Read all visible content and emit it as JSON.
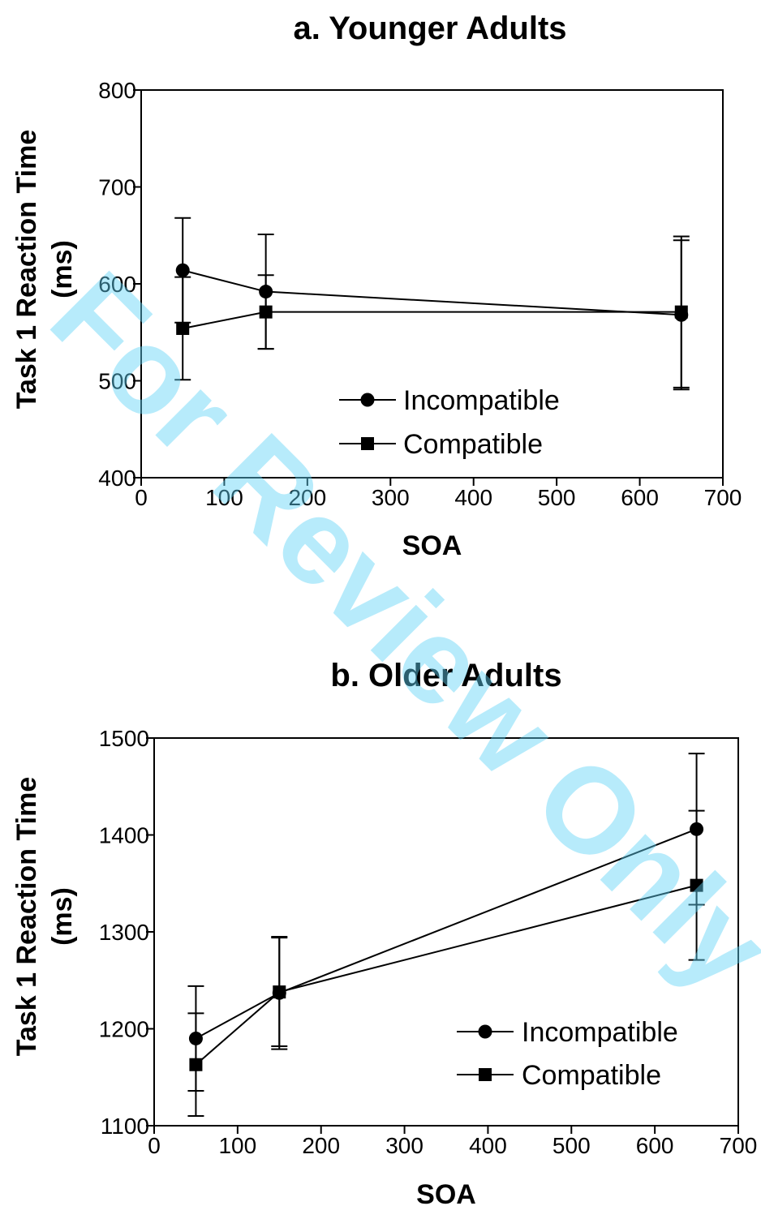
{
  "watermark": "For Review Only",
  "chart_data": [
    {
      "type": "line",
      "title": "a. Younger Adults",
      "xlabel": "SOA",
      "ylabel": [
        "Task 1 Reaction Time",
        "(ms)"
      ],
      "xlim": [
        0,
        700
      ],
      "ylim": [
        400,
        800
      ],
      "x_ticks": [
        0,
        100,
        200,
        300,
        400,
        500,
        600,
        700
      ],
      "y_ticks": [
        400,
        500,
        600,
        700,
        800
      ],
      "grid": false,
      "legend": "bottom-right",
      "x": [
        50,
        150,
        650
      ],
      "series": [
        {
          "name": "Incompatible",
          "marker": "circle",
          "values": [
            614,
            592,
            568
          ],
          "error": [
            54,
            59,
            77
          ]
        },
        {
          "name": "Compatible",
          "marker": "square",
          "values": [
            554,
            571,
            571
          ],
          "error": [
            53,
            38,
            78
          ]
        }
      ]
    },
    {
      "type": "line",
      "title": "b. Older Adults",
      "xlabel": "SOA",
      "ylabel": [
        "Task 1 Reaction Time",
        "(ms)"
      ],
      "xlim": [
        0,
        700
      ],
      "ylim": [
        1100,
        1500
      ],
      "x_ticks": [
        0,
        100,
        200,
        300,
        400,
        500,
        600,
        700
      ],
      "y_ticks": [
        1100,
        1200,
        1300,
        1400,
        1500
      ],
      "grid": false,
      "legend": "bottom-right",
      "x": [
        50,
        150,
        650
      ],
      "series": [
        {
          "name": "Incompatible",
          "marker": "circle",
          "values": [
            1190,
            1237,
            1406
          ],
          "error": [
            54,
            58,
            78
          ]
        },
        {
          "name": "Compatible",
          "marker": "square",
          "values": [
            1163,
            1238,
            1348
          ],
          "error": [
            53,
            56,
            77
          ]
        }
      ]
    }
  ]
}
